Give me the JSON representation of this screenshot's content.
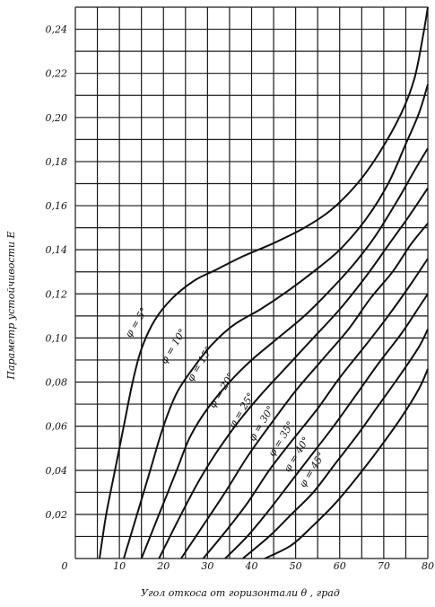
{
  "chart_data": {
    "type": "line",
    "title": "",
    "xlabel": "Угол откоса от горизонтали θ , град",
    "ylabel": "Параметр устойчивости E",
    "xlim": [
      0,
      80
    ],
    "ylim": [
      0,
      0.25
    ],
    "grid": true,
    "x_tick_labels": [
      "0",
      "10",
      "20",
      "30",
      "40",
      "50",
      "60",
      "70",
      "80"
    ],
    "y_tick_labels": [
      "0,02",
      "0,04",
      "0,06",
      "0,08",
      "0,10",
      "0,12",
      "0,14",
      "0,16",
      "0,18",
      "0,20",
      "0,22",
      "0,24"
    ],
    "series": [
      {
        "name": "φ = 5°",
        "points": [
          [
            5.5,
            0
          ],
          [
            7,
            0.02
          ],
          [
            9,
            0.04
          ],
          [
            11,
            0.06
          ],
          [
            13,
            0.08
          ],
          [
            15,
            0.095
          ],
          [
            18,
            0.108
          ],
          [
            22,
            0.118
          ],
          [
            27,
            0.126
          ],
          [
            32,
            0.131
          ],
          [
            38,
            0.137
          ],
          [
            45,
            0.143
          ],
          [
            52,
            0.15
          ],
          [
            58,
            0.158
          ],
          [
            64,
            0.17
          ],
          [
            69,
            0.184
          ],
          [
            74,
            0.202
          ],
          [
            77,
            0.218
          ],
          [
            79,
            0.238
          ],
          [
            80,
            0.25
          ]
        ]
      },
      {
        "name": "φ = 10°",
        "points": [
          [
            11,
            0
          ],
          [
            14,
            0.02
          ],
          [
            17,
            0.04
          ],
          [
            20,
            0.06
          ],
          [
            23,
            0.075
          ],
          [
            27,
            0.087
          ],
          [
            31,
            0.097
          ],
          [
            36,
            0.106
          ],
          [
            42,
            0.113
          ],
          [
            48,
            0.121
          ],
          [
            54,
            0.13
          ],
          [
            60,
            0.14
          ],
          [
            66,
            0.154
          ],
          [
            71,
            0.17
          ],
          [
            75,
            0.188
          ],
          [
            78,
            0.202
          ],
          [
            80,
            0.215
          ]
        ]
      },
      {
        "name": "φ = 15°",
        "points": [
          [
            15,
            0
          ],
          [
            19,
            0.02
          ],
          [
            23,
            0.04
          ],
          [
            26,
            0.055
          ],
          [
            30,
            0.068
          ],
          [
            35,
            0.08
          ],
          [
            40,
            0.09
          ],
          [
            46,
            0.1
          ],
          [
            52,
            0.11
          ],
          [
            58,
            0.122
          ],
          [
            63,
            0.133
          ],
          [
            68,
            0.146
          ],
          [
            73,
            0.162
          ],
          [
            77,
            0.176
          ],
          [
            80,
            0.186
          ]
        ]
      },
      {
        "name": "φ = 20°",
        "points": [
          [
            19,
            0
          ],
          [
            24,
            0.02
          ],
          [
            28,
            0.035
          ],
          [
            32,
            0.048
          ],
          [
            37,
            0.062
          ],
          [
            42,
            0.074
          ],
          [
            48,
            0.087
          ],
          [
            54,
            0.1
          ],
          [
            60,
            0.113
          ],
          [
            66,
            0.128
          ],
          [
            71,
            0.142
          ],
          [
            76,
            0.156
          ],
          [
            80,
            0.168
          ]
        ]
      },
      {
        "name": "φ = 25°",
        "points": [
          [
            24,
            0
          ],
          [
            29,
            0.015
          ],
          [
            34,
            0.03
          ],
          [
            39,
            0.046
          ],
          [
            44,
            0.06
          ],
          [
            50,
            0.076
          ],
          [
            56,
            0.09
          ],
          [
            62,
            0.104
          ],
          [
            67,
            0.118
          ],
          [
            72,
            0.13
          ],
          [
            76,
            0.142
          ],
          [
            80,
            0.152
          ]
        ]
      },
      {
        "name": "φ = 30°",
        "points": [
          [
            29,
            0
          ],
          [
            34,
            0.012
          ],
          [
            39,
            0.025
          ],
          [
            44,
            0.04
          ],
          [
            49,
            0.053
          ],
          [
            55,
            0.068
          ],
          [
            60,
            0.082
          ],
          [
            66,
            0.097
          ],
          [
            71,
            0.11
          ],
          [
            76,
            0.124
          ],
          [
            80,
            0.136
          ]
        ]
      },
      {
        "name": "φ = 35°",
        "points": [
          [
            34,
            0
          ],
          [
            39,
            0.01
          ],
          [
            44,
            0.022
          ],
          [
            49,
            0.035
          ],
          [
            54,
            0.048
          ],
          [
            59,
            0.061
          ],
          [
            64,
            0.075
          ],
          [
            69,
            0.089
          ],
          [
            74,
            0.102
          ],
          [
            78,
            0.114
          ],
          [
            80,
            0.12
          ]
        ]
      },
      {
        "name": "φ = 40°",
        "points": [
          [
            38,
            0
          ],
          [
            44,
            0.01
          ],
          [
            49,
            0.02
          ],
          [
            54,
            0.03
          ],
          [
            59,
            0.043
          ],
          [
            64,
            0.056
          ],
          [
            69,
            0.07
          ],
          [
            74,
            0.084
          ],
          [
            78,
            0.096
          ],
          [
            80,
            0.104
          ]
        ]
      },
      {
        "name": "φ = 45°",
        "points": [
          [
            43,
            0
          ],
          [
            49,
            0.006
          ],
          [
            54,
            0.015
          ],
          [
            59,
            0.025
          ],
          [
            64,
            0.037
          ],
          [
            69,
            0.05
          ],
          [
            74,
            0.064
          ],
          [
            78,
            0.077
          ],
          [
            80,
            0.086
          ]
        ]
      }
    ]
  }
}
